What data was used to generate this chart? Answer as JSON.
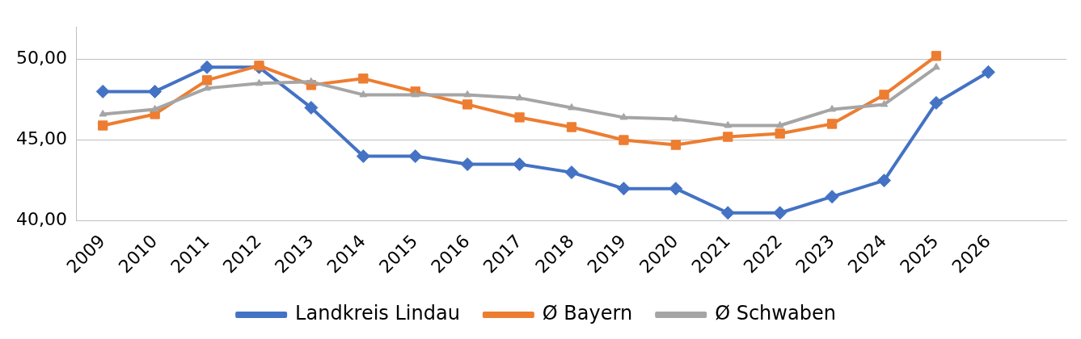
{
  "chart_data": {
    "type": "line",
    "categories": [
      "2009",
      "2010",
      "2011",
      "2012",
      "2013",
      "2014",
      "2015",
      "2016",
      "2017",
      "2018",
      "2019",
      "2020",
      "2021",
      "2022",
      "2023",
      "2024",
      "2025",
      "2026",
      null
    ],
    "series": [
      {
        "name": "Landkreis Lindau",
        "color": "#4472c4",
        "marker": "diamond",
        "values": [
          48.0,
          48.0,
          49.5,
          49.5,
          47.0,
          44.0,
          44.0,
          43.5,
          43.5,
          43.0,
          42.0,
          42.0,
          40.5,
          40.5,
          41.5,
          42.5,
          47.3,
          49.2,
          null
        ]
      },
      {
        "name": "Ø Bayern",
        "color": "#ed7d31",
        "marker": "square",
        "values": [
          45.9,
          46.6,
          48.7,
          49.6,
          48.4,
          48.8,
          48.0,
          47.2,
          46.4,
          45.8,
          45.0,
          44.7,
          45.2,
          45.4,
          46.0,
          47.8,
          50.2,
          null,
          null
        ]
      },
      {
        "name": "Ø Schwaben",
        "color": "#a5a5a5",
        "marker": "triangle",
        "values": [
          46.6,
          46.9,
          48.2,
          48.5,
          48.6,
          47.8,
          47.8,
          47.8,
          47.6,
          47.0,
          46.4,
          46.3,
          45.9,
          45.9,
          46.9,
          47.2,
          49.5,
          null,
          null
        ]
      }
    ],
    "ylim": [
      40,
      52
    ],
    "yticks": [
      {
        "value": 40,
        "label": "40,00"
      },
      {
        "value": 45,
        "label": "45,00"
      },
      {
        "value": 50,
        "label": "50,00"
      }
    ],
    "grid": "y",
    "legend": "bottom",
    "line_style": "solid"
  }
}
